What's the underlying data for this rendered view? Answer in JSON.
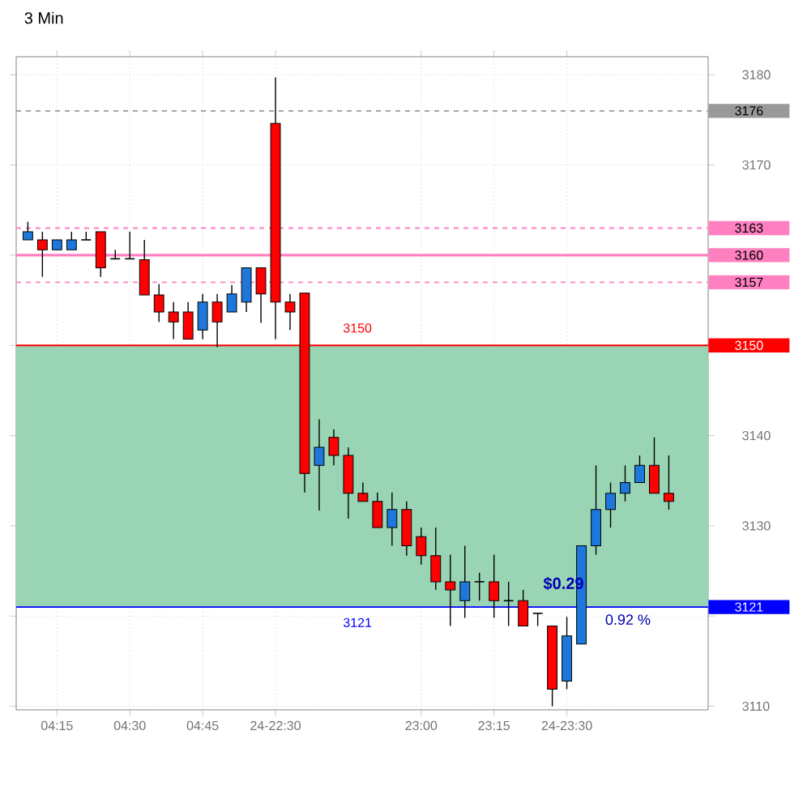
{
  "chart_data": {
    "type": "candlestick",
    "title": "3 Min",
    "categories": [
      null,
      null,
      "04:15",
      null,
      null,
      null,
      null,
      "04:30",
      null,
      null,
      null,
      null,
      "04:45",
      null,
      null,
      null,
      null,
      "24-22:30",
      null,
      null,
      null,
      null,
      null,
      null,
      null,
      null,
      null,
      "23:00",
      null,
      null,
      null,
      null,
      "23:15",
      null,
      null,
      null,
      null,
      "24-23:30",
      null,
      null,
      null,
      null,
      null,
      null,
      null
    ],
    "ohlc": [
      [
        3161.7,
        3163.7,
        3161.7,
        3162.6
      ],
      [
        3161.7,
        3162.6,
        3157.6,
        3160.6
      ],
      [
        3160.6,
        3161.7,
        3160.6,
        3161.7
      ],
      [
        3160.6,
        3162.6,
        3160.6,
        3161.7
      ],
      [
        3161.7,
        3162.6,
        3161.7,
        3161.7
      ],
      [
        3162.6,
        3162.6,
        3157.6,
        3158.6
      ],
      [
        3159.6,
        3160.6,
        3159.6,
        3159.6
      ],
      [
        3159.6,
        3162.6,
        3159.6,
        3159.6
      ],
      [
        3159.5,
        3161.7,
        3155.6,
        3155.6
      ],
      [
        3155.6,
        3156.8,
        3152.6,
        3153.7
      ],
      [
        3153.7,
        3154.8,
        3150.7,
        3152.6
      ],
      [
        3153.7,
        3154.8,
        3150.7,
        3150.7
      ],
      [
        3151.7,
        3155.7,
        3150.7,
        3154.8
      ],
      [
        3154.8,
        3155.7,
        3149.8,
        3152.6
      ],
      [
        3153.7,
        3156.7,
        3153.7,
        3155.7
      ],
      [
        3154.8,
        3158.6,
        3153.7,
        3158.6
      ],
      [
        3158.6,
        3158.6,
        3152.5,
        3155.7
      ],
      [
        3174.6,
        3179.7,
        3150.7,
        3154.8
      ],
      [
        3154.8,
        3155.7,
        3151.7,
        3153.7
      ],
      [
        3155.8,
        3155.8,
        3133.7,
        3135.8
      ],
      [
        3136.7,
        3141.8,
        3131.7,
        3138.7
      ],
      [
        3139.8,
        3140.7,
        3136.7,
        3137.8
      ],
      [
        3137.8,
        3138.7,
        3130.8,
        3133.6
      ],
      [
        3133.6,
        3134.8,
        3132.7,
        3132.7
      ],
      [
        3132.7,
        3133.7,
        3129.8,
        3129.8
      ],
      [
        3129.8,
        3133.7,
        3127.8,
        3131.8
      ],
      [
        3131.8,
        3132.7,
        3126.7,
        3127.8
      ],
      [
        3128.8,
        3129.8,
        3125.7,
        3126.7
      ],
      [
        3126.7,
        3129.8,
        3122.9,
        3123.8
      ],
      [
        3123.8,
        3126.8,
        3118.9,
        3122.9
      ],
      [
        3121.7,
        3127.8,
        3119.8,
        3123.8
      ],
      [
        3123.8,
        3124.8,
        3121.7,
        3123.8
      ],
      [
        3123.8,
        3126.8,
        3119.8,
        3121.7
      ],
      [
        3121.7,
        3123.8,
        3118.9,
        3121.7
      ],
      [
        3121.7,
        3122.9,
        3118.9,
        3118.9
      ],
      [
        3120.3,
        3120.3,
        3118.9,
        3120.3
      ],
      [
        3118.9,
        3118.9,
        3110.0,
        3111.9
      ],
      [
        3112.8,
        3119.9,
        3111.9,
        3117.8
      ],
      [
        3116.9,
        3127.8,
        3116.9,
        3127.8
      ],
      [
        3127.8,
        3136.7,
        3126.8,
        3131.8
      ],
      [
        3131.8,
        3134.8,
        3129.8,
        3133.6
      ],
      [
        3133.6,
        3136.7,
        3132.7,
        3134.8
      ],
      [
        3134.8,
        3137.8,
        3134.8,
        3136.7
      ],
      [
        3136.7,
        3139.8,
        3133.6,
        3133.6
      ],
      [
        3133.6,
        3137.8,
        3131.8,
        3132.7
      ]
    ],
    "colors": [
      "#1e78dc",
      "#ff0000",
      "#1e78dc",
      "#1e78dc",
      "#000000",
      "#ff0000",
      "#000000",
      "#000000",
      "#ff0000",
      "#ff0000",
      "#ff0000",
      "#ff0000",
      "#1e78dc",
      "#ff0000",
      "#1e78dc",
      "#1e78dc",
      "#ff0000",
      "#ff0000",
      "#ff0000",
      "#ff0000",
      "#1e78dc",
      "#ff0000",
      "#ff0000",
      "#ff0000",
      "#ff0000",
      "#1e78dc",
      "#ff0000",
      "#ff0000",
      "#ff0000",
      "#ff0000",
      "#1e78dc",
      "#000000",
      "#ff0000",
      "#000000",
      "#ff0000",
      "#000000",
      "#ff0000",
      "#1e78dc",
      "#1e78dc",
      "#1e78dc",
      "#1e78dc",
      "#1e78dc",
      "#1e78dc",
      "#ff0000",
      "#ff0000"
    ],
    "ylim": [
      3109.6,
      3182
    ],
    "yticks": [
      3110,
      {
        "value": 3120,
        "label": null
      },
      3130,
      3140,
      {
        "value": 3150,
        "label": null
      },
      {
        "value": 3160,
        "label": null
      },
      3170,
      3180
    ],
    "grid": true,
    "bands": [
      {
        "axis": "y",
        "from": 3121,
        "to": 3150,
        "color": "#99d5b4"
      }
    ],
    "ref_lines": [
      {
        "axis": "y",
        "value": 3176,
        "label": "3176",
        "color": "#999999",
        "line_style": "dashed"
      },
      {
        "axis": "y",
        "value": 3163,
        "label": "3163",
        "color": "#ff80c0",
        "line_style": "dashed"
      },
      {
        "axis": "y",
        "value": 3160,
        "label": "3160",
        "color": "#ff80c0",
        "line_style": "solid"
      },
      {
        "axis": "y",
        "value": 3157,
        "label": "3157",
        "color": "#ff80c0",
        "line_style": "dashed"
      },
      {
        "axis": "y",
        "value": 3150,
        "label": "3150",
        "color": "#ff0000",
        "line_style": "solid"
      },
      {
        "axis": "y",
        "value": 3121,
        "label": "3121",
        "color": "#0000ff",
        "line_style": "solid"
      }
    ],
    "annotations": [
      "3150",
      "3121",
      "$0.29",
      "0.92 %"
    ]
  }
}
